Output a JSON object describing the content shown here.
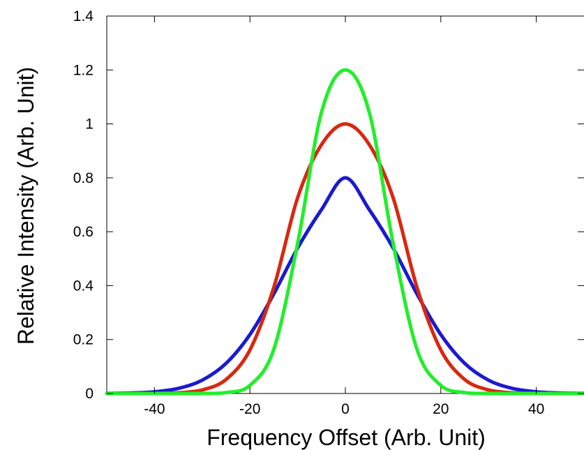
{
  "chart_data": {
    "type": "line",
    "title": "",
    "xlabel": "Frequency Offset (Arb. Unit)",
    "ylabel": "Relative Intensity (Arb. Unit)",
    "xlim": [
      -50,
      50
    ],
    "ylim": [
      0,
      1.4
    ],
    "xticks": [
      -40,
      -20,
      0,
      20,
      40
    ],
    "xtick_labels": [
      "-40",
      "-20",
      "0",
      "20",
      "40"
    ],
    "yticks": [
      0,
      0.2,
      0.4,
      0.6,
      0.8,
      1,
      1.2,
      1.4
    ],
    "ytick_labels": [
      "0",
      "0.2",
      "0.4",
      "0.6",
      "0.8",
      "1",
      "1.2",
      "1.4"
    ],
    "grid": false,
    "legend": "none",
    "x": [
      -50,
      -45,
      -40,
      -35,
      -30,
      -25,
      -20,
      -15,
      -10,
      -5,
      0,
      5,
      10,
      15,
      20,
      25,
      30,
      35,
      40,
      45,
      50
    ],
    "series": [
      {
        "color": "#1a1ad0",
        "values": [
          0.0005,
          0.0018,
          0.0063,
          0.0189,
          0.0494,
          0.1118,
          0.2185,
          0.3693,
          0.5397,
          0.682,
          0.8,
          0.682,
          0.5397,
          0.3693,
          0.2185,
          0.1118,
          0.0494,
          0.0189,
          0.0063,
          0.0018,
          0.0005
        ]
      },
      {
        "color": "#d82810",
        "values": [
          0.0,
          0.0001,
          0.0004,
          0.0026,
          0.0131,
          0.052,
          0.1615,
          0.3936,
          0.7262,
          0.9231,
          1.0,
          0.9231,
          0.7262,
          0.3936,
          0.1615,
          0.052,
          0.0131,
          0.0026,
          0.0004,
          0.0001,
          0.0
        ]
      },
      {
        "color": "#22ee2a",
        "values": [
          0.0,
          0.0,
          0.0,
          0.0,
          0.0002,
          0.0034,
          0.0301,
          0.164,
          0.557,
          1.0435,
          1.2,
          1.0435,
          0.557,
          0.164,
          0.0301,
          0.0034,
          0.0002,
          0.0,
          0.0,
          0.0,
          0.0
        ]
      }
    ]
  }
}
